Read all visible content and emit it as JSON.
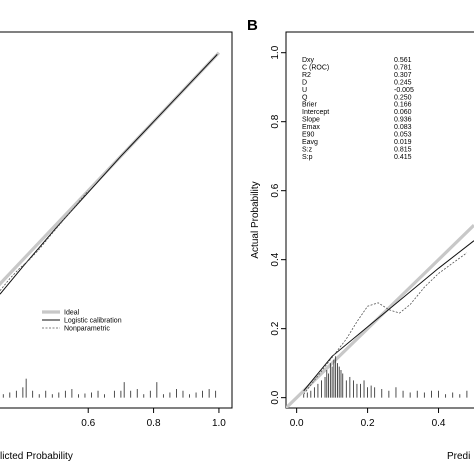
{
  "chart_data": [
    {
      "panel": "",
      "type": "line",
      "xlabel": "Predicted Probability",
      "ylabel": "",
      "xlim": [
        0.33,
        1.04
      ],
      "ylim": [
        -0.03,
        1.06
      ],
      "xticks": [
        "0.6",
        "0.8",
        "1.0"
      ],
      "xtick_values": [
        0.6,
        0.8,
        1.0
      ],
      "visible_xlabel_text": "licted Probability",
      "series": [
        {
          "name": "Ideal",
          "style": "ideal",
          "x": [
            0.0,
            1.0
          ],
          "y": [
            0.0,
            1.0
          ]
        },
        {
          "name": "Logistic calibration",
          "style": "logistic",
          "x": [
            0.33,
            0.4,
            0.5,
            0.6,
            0.7,
            0.8,
            0.9,
            0.995
          ],
          "y": [
            0.3,
            0.38,
            0.49,
            0.595,
            0.7,
            0.8,
            0.9,
            0.995
          ]
        },
        {
          "name": "Nonparametric",
          "style": "nonparametric",
          "x": [
            0.33,
            0.36,
            0.39,
            0.42,
            0.45,
            0.48,
            0.52,
            0.56,
            0.6
          ],
          "y": [
            0.31,
            0.345,
            0.375,
            0.4,
            0.43,
            0.465,
            0.51,
            0.555,
            0.6
          ]
        }
      ],
      "spike_x": [
        0.34,
        0.36,
        0.38,
        0.4,
        0.41,
        0.43,
        0.45,
        0.47,
        0.49,
        0.51,
        0.53,
        0.55,
        0.57,
        0.59,
        0.61,
        0.63,
        0.65,
        0.68,
        0.7,
        0.71,
        0.73,
        0.75,
        0.77,
        0.79,
        0.81,
        0.83,
        0.85,
        0.87,
        0.89,
        0.91,
        0.93,
        0.95,
        0.97,
        0.99
      ],
      "spike_h": [
        0.01,
        0.015,
        0.02,
        0.03,
        0.055,
        0.02,
        0.01,
        0.02,
        0.01,
        0.015,
        0.02,
        0.025,
        0.01,
        0.012,
        0.015,
        0.02,
        0.01,
        0.02,
        0.02,
        0.045,
        0.02,
        0.025,
        0.01,
        0.02,
        0.045,
        0.01,
        0.015,
        0.025,
        0.02,
        0.01,
        0.015,
        0.02,
        0.025,
        0.02
      ],
      "legend": {
        "entries": [
          {
            "label": "Ideal",
            "style": "ideal"
          },
          {
            "label": "Logistic calibration",
            "style": "logistic"
          },
          {
            "label": "Nonparametric",
            "style": "nonparametric"
          }
        ]
      }
    },
    {
      "panel": "B",
      "type": "line",
      "xlabel": "Predi",
      "ylabel": "Actual Probability",
      "xlim": [
        -0.03,
        0.5
      ],
      "ylim": [
        -0.03,
        1.06
      ],
      "xticks": [
        "0.0",
        "0.2",
        "0.4"
      ],
      "xtick_values": [
        0.0,
        0.2,
        0.4
      ],
      "yticks": [
        "0.0",
        "0.2",
        "0.4",
        "0.6",
        "0.8",
        "1.0"
      ],
      "ytick_values": [
        0.0,
        0.2,
        0.4,
        0.6,
        0.8,
        1.0
      ],
      "series": [
        {
          "name": "Ideal",
          "style": "ideal",
          "x": [
            -0.03,
            0.5
          ],
          "y": [
            -0.03,
            0.5
          ]
        },
        {
          "name": "Logistic calibration",
          "style": "logistic",
          "x": [
            0.02,
            0.1,
            0.2,
            0.3,
            0.4,
            0.5
          ],
          "y": [
            0.02,
            0.12,
            0.205,
            0.29,
            0.375,
            0.455
          ]
        },
        {
          "name": "Nonparametric",
          "style": "nonparametric",
          "x": [
            0.02,
            0.05,
            0.08,
            0.11,
            0.14,
            0.17,
            0.2,
            0.23,
            0.26,
            0.29,
            0.32,
            0.36,
            0.4,
            0.44,
            0.48
          ],
          "y": [
            0.01,
            0.05,
            0.09,
            0.13,
            0.17,
            0.22,
            0.265,
            0.275,
            0.255,
            0.245,
            0.27,
            0.32,
            0.36,
            0.39,
            0.42
          ]
        }
      ],
      "spike_x": [
        0.02,
        0.03,
        0.04,
        0.05,
        0.06,
        0.07,
        0.08,
        0.085,
        0.09,
        0.095,
        0.1,
        0.105,
        0.11,
        0.115,
        0.12,
        0.125,
        0.13,
        0.14,
        0.15,
        0.16,
        0.17,
        0.18,
        0.19,
        0.2,
        0.21,
        0.22,
        0.24,
        0.26,
        0.28,
        0.3,
        0.32,
        0.34,
        0.36,
        0.38,
        0.4,
        0.42,
        0.44,
        0.46,
        0.48
      ],
      "spike_h": [
        0.01,
        0.015,
        0.02,
        0.03,
        0.04,
        0.05,
        0.06,
        0.08,
        0.07,
        0.1,
        0.09,
        0.11,
        0.12,
        0.1,
        0.09,
        0.08,
        0.07,
        0.05,
        0.06,
        0.05,
        0.04,
        0.04,
        0.05,
        0.03,
        0.035,
        0.03,
        0.025,
        0.02,
        0.03,
        0.02,
        0.015,
        0.02,
        0.015,
        0.02,
        0.02,
        0.01,
        0.015,
        0.01,
        0.02
      ],
      "stats": [
        {
          "label": "Dxy",
          "value": "0.561"
        },
        {
          "label": "C (ROC)",
          "value": "0.781"
        },
        {
          "label": "R2",
          "value": "0.307"
        },
        {
          "label": "D",
          "value": "0.245"
        },
        {
          "label": "U",
          "value": "-0.005"
        },
        {
          "label": "Q",
          "value": "0.250"
        },
        {
          "label": "Brier",
          "value": "0.166"
        },
        {
          "label": "Intercept",
          "value": "0.060"
        },
        {
          "label": "Slope",
          "value": "0.936"
        },
        {
          "label": "Emax",
          "value": "0.083"
        },
        {
          "label": "E90",
          "value": "0.053"
        },
        {
          "label": "Eavg",
          "value": "0.019"
        },
        {
          "label": "S:z",
          "value": "0.815"
        },
        {
          "label": "S:p",
          "value": "0.415"
        }
      ]
    }
  ]
}
